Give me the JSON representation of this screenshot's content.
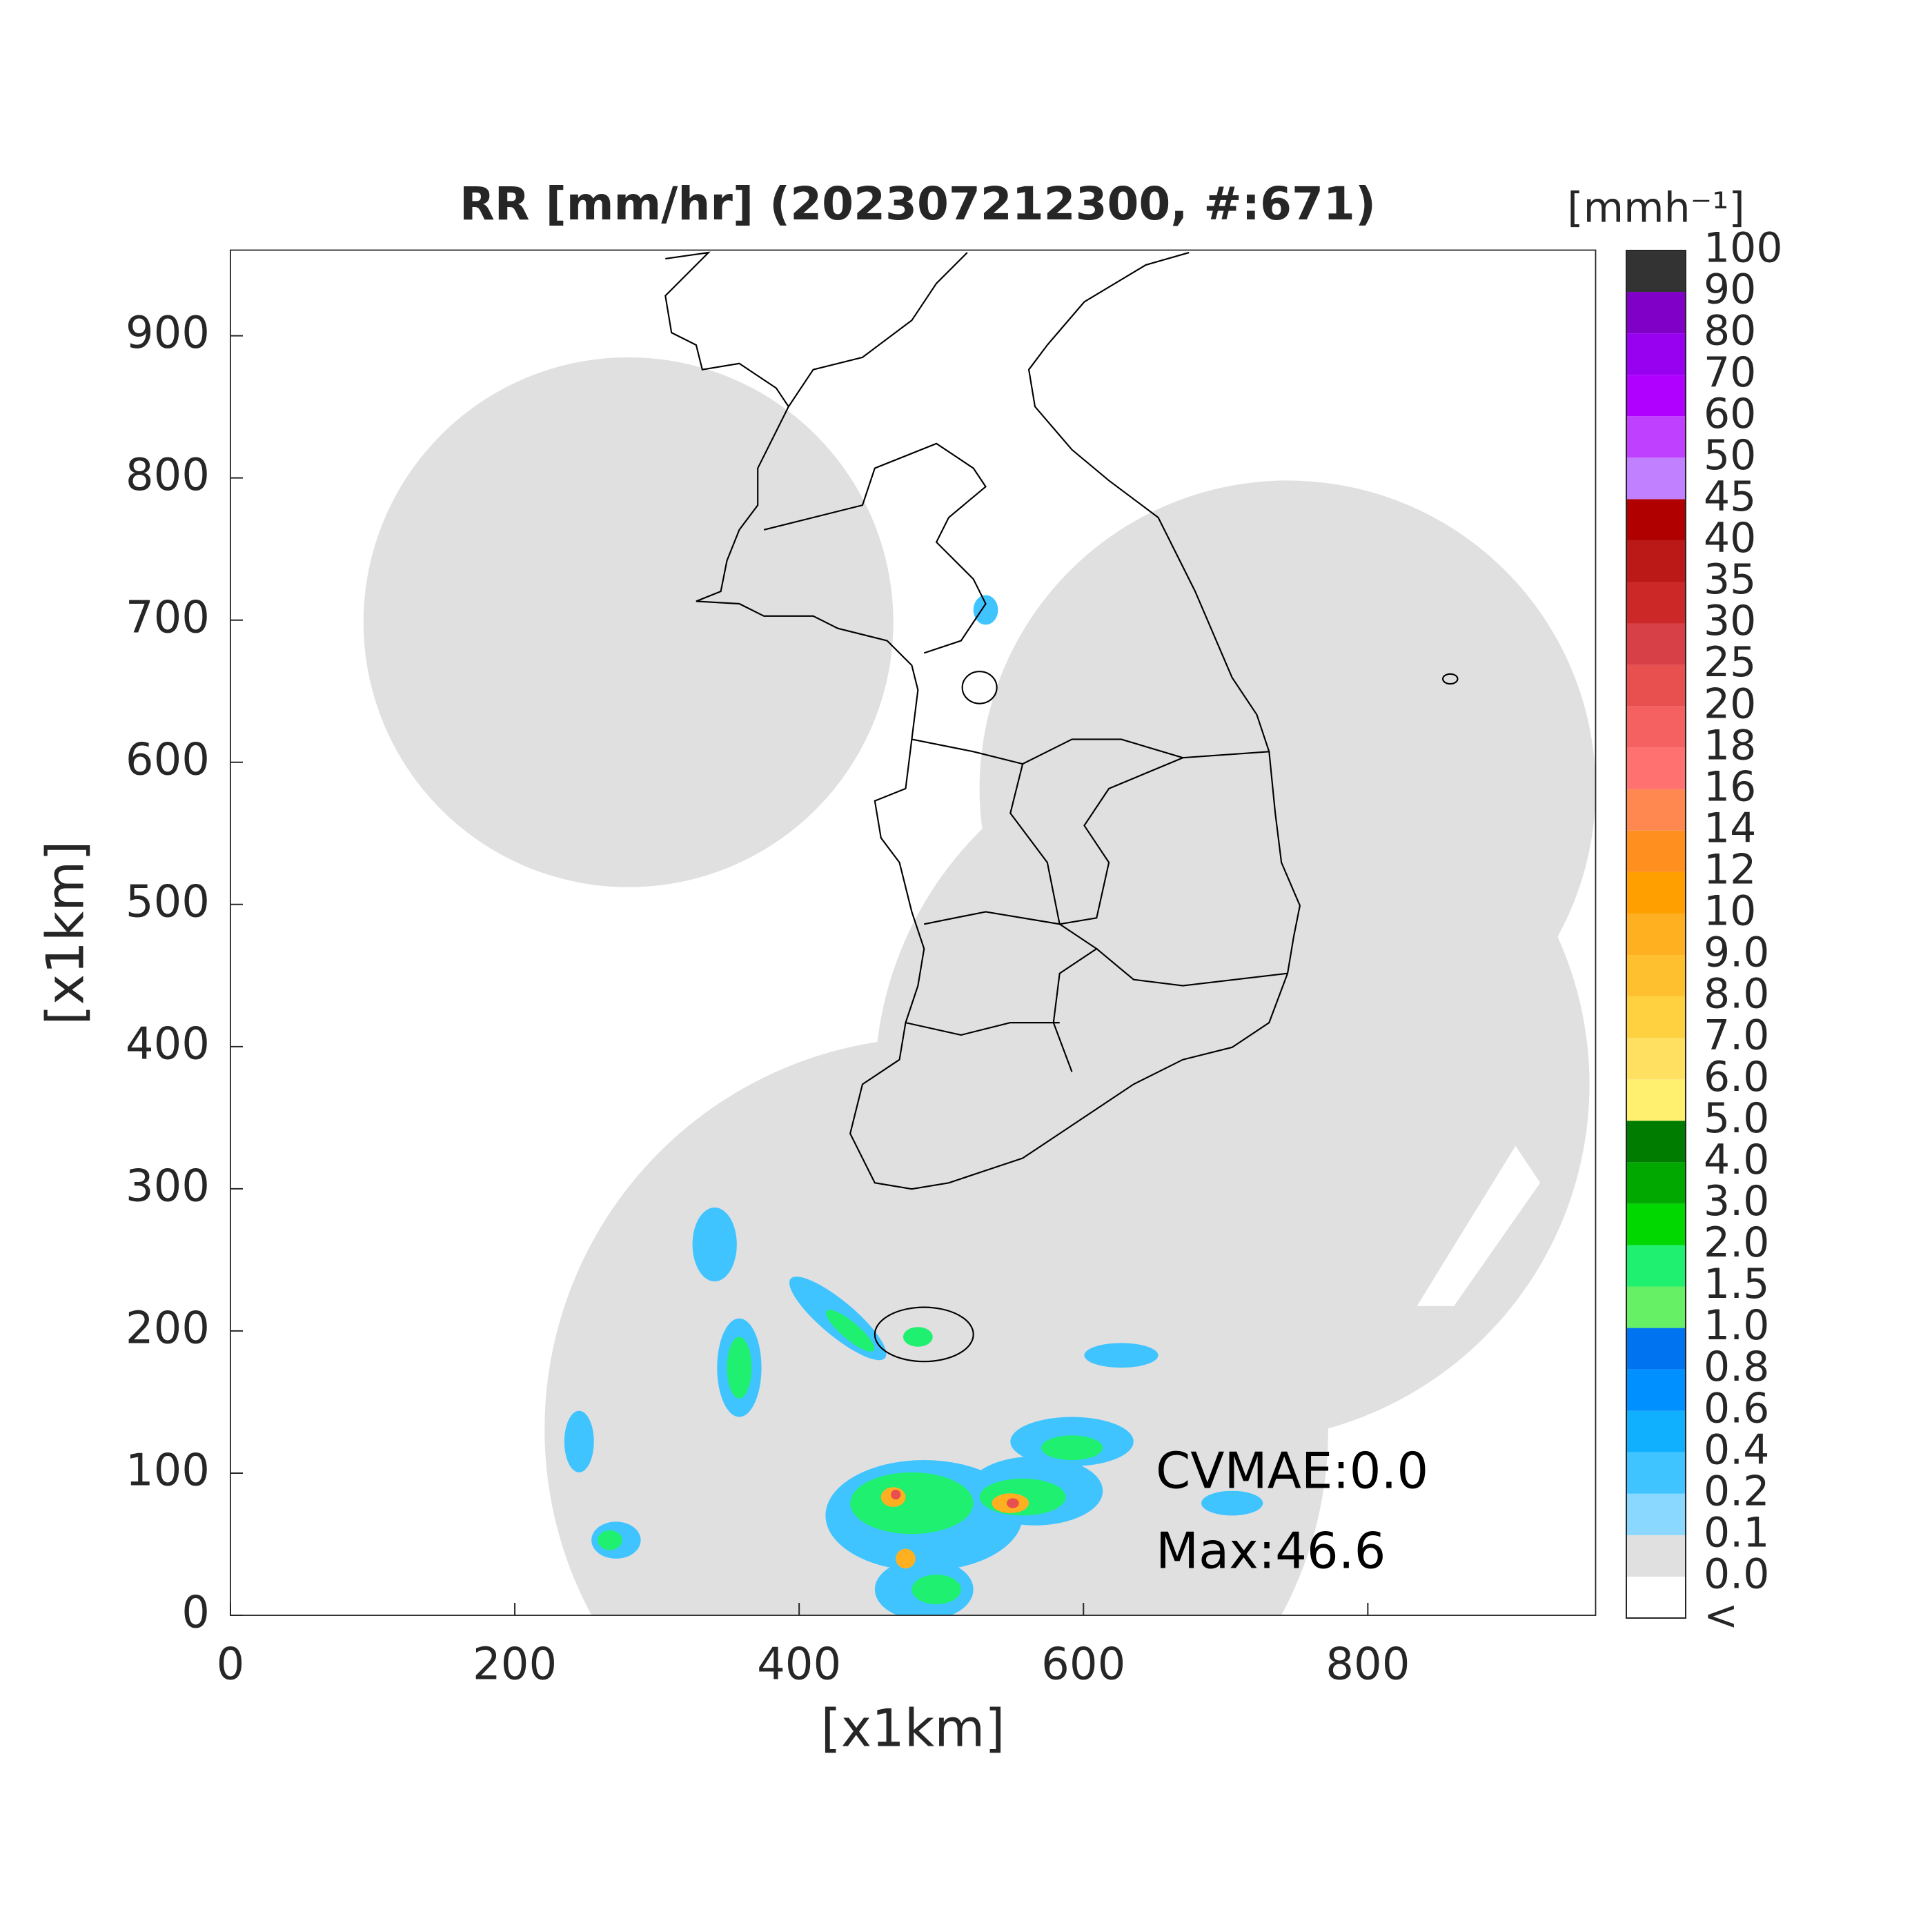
{
  "chart_data": {
    "type": "map",
    "title": "RR [mm/hr] (202307212300, #:671)",
    "xlabel": "[x1km]",
    "ylabel": "[x1km]",
    "xlim": [
      0,
      960
    ],
    "ylim": [
      0,
      960
    ],
    "xticks": [
      0,
      200,
      400,
      600,
      800
    ],
    "yticks": [
      0,
      100,
      200,
      300,
      400,
      500,
      600,
      700,
      800,
      900
    ],
    "annotations": [
      "CVMAE:0.0",
      "Max:46.6"
    ],
    "colorbar": {
      "title": "[mmh⁻¹]",
      "labels": [
        "<",
        "0.0",
        "0.1",
        "0.2",
        "0.4",
        "0.6",
        "0.8",
        "1.0",
        "1.5",
        "2.0",
        "3.0",
        "4.0",
        "5.0",
        "6.0",
        "7.0",
        "8.0",
        "9.0",
        "10",
        "12",
        "14",
        "16",
        "18",
        "20",
        "25",
        "30",
        "35",
        "40",
        "45",
        "50",
        "60",
        "70",
        "80",
        "90",
        "100"
      ],
      "colors": [
        "#ffffff",
        "#e0e0e0",
        "#8ad8ff",
        "#40c4ff",
        "#10b0ff",
        "#0090ff",
        "#0074f0",
        "#66f066",
        "#20f070",
        "#00d800",
        "#00a800",
        "#007c00",
        "#fff070",
        "#ffe060",
        "#ffd040",
        "#ffc030",
        "#ffb020",
        "#ffa000",
        "#ff9020",
        "#ff8850",
        "#ff7070",
        "#f56060",
        "#e85050",
        "#d84048",
        "#cc2828",
        "#bb1818",
        "#b00000",
        "#c080ff",
        "#c040ff",
        "#b000ff",
        "#9800f0",
        "#8000c8",
        "#333333"
      ]
    }
  }
}
